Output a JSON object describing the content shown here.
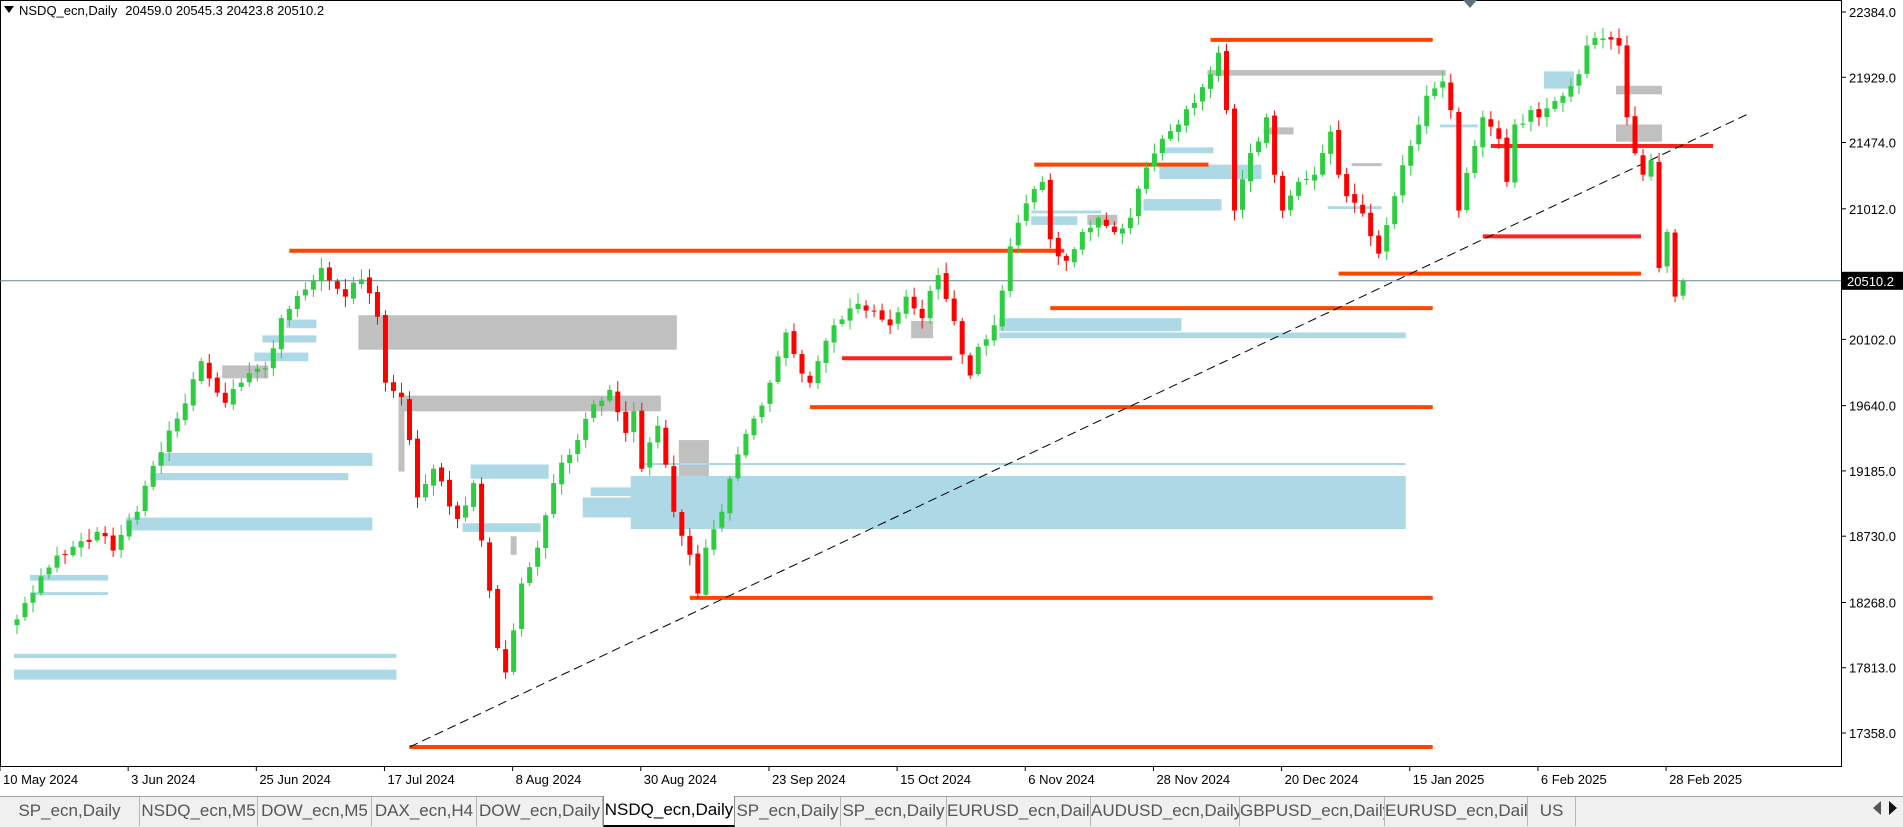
{
  "header": {
    "symbol": "NSDQ_ecn,Daily",
    "ohlc": "20459.0 20545.3 20423.8 20510.2"
  },
  "tabs": [
    {
      "label": "SP_ecn,Daily"
    },
    {
      "label": "NSDQ_ecn,M5"
    },
    {
      "label": "DOW_ecn,M5"
    },
    {
      "label": "DAX_ecn,H4"
    },
    {
      "label": "DOW_ecn,Daily"
    },
    {
      "label": "NSDQ_ecn,Daily",
      "active": true
    },
    {
      "label": "SP_ecn,Daily"
    },
    {
      "label": "SP_ecn,Daily"
    },
    {
      "label": "EURUSD_ecn,Daily"
    },
    {
      "label": "AUDUSD_ecn,Daily"
    },
    {
      "label": "GBPUSD_ecn,Daily"
    },
    {
      "label": "EURUSD_ecn,Daily"
    },
    {
      "label": "US"
    }
  ],
  "chart_data": {
    "type": "candlestick",
    "symbol": "NSDQ_ecn",
    "timeframe": "Daily",
    "current_price": 20510.2,
    "current_price_label": "20510.2",
    "y_range": [
      17150,
      22520
    ],
    "y_ticks": [
      {
        "value": 22384.0,
        "label": "22384.0"
      },
      {
        "value": 21929.0,
        "label": "21929.0"
      },
      {
        "value": 21474.0,
        "label": "21474.0"
      },
      {
        "value": 21012.0,
        "label": "21012.0"
      },
      {
        "value": 20102.0,
        "label": "20102.0"
      },
      {
        "value": 19640.0,
        "label": "19640.0"
      },
      {
        "value": 19185.0,
        "label": "19185.0"
      },
      {
        "value": 18730.0,
        "label": "18730.0"
      },
      {
        "value": 18268.0,
        "label": "18268.0"
      },
      {
        "value": 17813.0,
        "label": "17813.0"
      },
      {
        "value": 17358.0,
        "label": "17358.0"
      }
    ],
    "x_labels": [
      {
        "index": 0,
        "label": "10 May 2024"
      },
      {
        "index": 16,
        "label": "3 Jun 2024"
      },
      {
        "index": 32,
        "label": "25 Jun 2024"
      },
      {
        "index": 48,
        "label": "17 Jul 2024"
      },
      {
        "index": 64,
        "label": "8 Aug 2024"
      },
      {
        "index": 80,
        "label": "30 Aug 2024"
      },
      {
        "index": 96,
        "label": "23 Sep 2024"
      },
      {
        "index": 112,
        "label": "15 Oct 2024"
      },
      {
        "index": 128,
        "label": "6 Nov 2024"
      },
      {
        "index": 144,
        "label": "28 Nov 2024"
      },
      {
        "index": 160,
        "label": "20 Dec 2024"
      },
      {
        "index": 176,
        "label": "15 Jan 2025"
      },
      {
        "index": 192,
        "label": "6 Feb 2025"
      },
      {
        "index": 208,
        "label": "28 Feb 2025"
      }
    ],
    "num_candles": 209,
    "price_anchors": [
      [
        0,
        18150
      ],
      [
        3,
        18450
      ],
      [
        6,
        18600
      ],
      [
        10,
        18760
      ],
      [
        12,
        18630
      ],
      [
        15,
        18900
      ],
      [
        17,
        19220
      ],
      [
        20,
        19550
      ],
      [
        23,
        19950
      ],
      [
        26,
        19660
      ],
      [
        28,
        19800
      ],
      [
        31,
        19900
      ],
      [
        33,
        20250
      ],
      [
        36,
        20450
      ],
      [
        38,
        20600
      ],
      [
        41,
        20400
      ],
      [
        43,
        20520
      ],
      [
        45,
        20260
      ],
      [
        46,
        19800
      ],
      [
        48,
        19700
      ],
      [
        49,
        19400
      ],
      [
        50,
        19000
      ],
      [
        52,
        19200
      ],
      [
        55,
        18850
      ],
      [
        57,
        19100
      ],
      [
        58,
        18700
      ],
      [
        59,
        18350
      ],
      [
        60,
        17950
      ],
      [
        61,
        17780
      ],
      [
        63,
        18400
      ],
      [
        65,
        18650
      ],
      [
        67,
        19100
      ],
      [
        70,
        19400
      ],
      [
        72,
        19650
      ],
      [
        74,
        19750
      ],
      [
        76,
        19450
      ],
      [
        77,
        19600
      ],
      [
        78,
        19200
      ],
      [
        80,
        19500
      ],
      [
        82,
        18900
      ],
      [
        84,
        18600
      ],
      [
        85,
        18330
      ],
      [
        86,
        18650
      ],
      [
        88,
        18900
      ],
      [
        90,
        19300
      ],
      [
        92,
        19550
      ],
      [
        94,
        19800
      ],
      [
        96,
        20150
      ],
      [
        97,
        20000
      ],
      [
        99,
        19800
      ],
      [
        100,
        19950
      ],
      [
        102,
        20200
      ],
      [
        105,
        20350
      ],
      [
        107,
        20300
      ],
      [
        109,
        20200
      ],
      [
        111,
        20400
      ],
      [
        113,
        20250
      ],
      [
        115,
        20550
      ],
      [
        117,
        20230
      ],
      [
        119,
        19850
      ],
      [
        120,
        20050
      ],
      [
        122,
        20200
      ],
      [
        124,
        20750
      ],
      [
        126,
        21050
      ],
      [
        127,
        21150
      ],
      [
        128,
        21200
      ],
      [
        129,
        20800
      ],
      [
        131,
        20650
      ],
      [
        133,
        20850
      ],
      [
        135,
        20950
      ],
      [
        137,
        20850
      ],
      [
        139,
        20950
      ],
      [
        141,
        21300
      ],
      [
        143,
        21500
      ],
      [
        145,
        21600
      ],
      [
        147,
        21750
      ],
      [
        149,
        21950
      ],
      [
        150,
        22100
      ],
      [
        151,
        21700
      ],
      [
        152,
        21000
      ],
      [
        154,
        21400
      ],
      [
        156,
        21650
      ],
      [
        157,
        21250
      ],
      [
        158,
        21000
      ],
      [
        160,
        21200
      ],
      [
        162,
        21250
      ],
      [
        164,
        21550
      ],
      [
        165,
        21250
      ],
      [
        166,
        21100
      ],
      [
        168,
        20980
      ],
      [
        170,
        20700
      ],
      [
        172,
        21100
      ],
      [
        174,
        21450
      ],
      [
        176,
        21800
      ],
      [
        178,
        21900
      ],
      [
        179,
        21700
      ],
      [
        180,
        21000
      ],
      [
        182,
        21450
      ],
      [
        183,
        21650
      ],
      [
        185,
        21500
      ],
      [
        186,
        21200
      ],
      [
        187,
        21600
      ],
      [
        189,
        21700
      ],
      [
        190,
        21650
      ],
      [
        193,
        21800
      ],
      [
        195,
        21950
      ],
      [
        196,
        22150
      ],
      [
        198,
        22200
      ],
      [
        200,
        22150
      ],
      [
        201,
        21650
      ],
      [
        202,
        21400
      ],
      [
        203,
        21250
      ],
      [
        204,
        21350
      ],
      [
        205,
        20600
      ],
      [
        206,
        20850
      ],
      [
        207,
        20400
      ],
      [
        208,
        20510.2
      ]
    ],
    "zones_grey": [
      {
        "x0": 26,
        "x1": 31,
        "low": 19830,
        "high": 19920
      },
      {
        "x0": 43,
        "x1": 82,
        "low": 20030,
        "high": 20270
      },
      {
        "x0": 48,
        "x1": 80,
        "low": 19600,
        "high": 19710
      },
      {
        "x0": 48,
        "x1": 48,
        "low": 19180,
        "high": 19710
      },
      {
        "x0": 62,
        "x1": 62,
        "low": 18600,
        "high": 18730
      },
      {
        "x0": 83,
        "x1": 86,
        "low": 19150,
        "high": 19400
      },
      {
        "x0": 112,
        "x1": 114,
        "low": 20110,
        "high": 20230
      },
      {
        "x0": 134,
        "x1": 137,
        "low": 20900,
        "high": 20970
      },
      {
        "x0": 149,
        "x1": 178,
        "low": 21940,
        "high": 21980
      },
      {
        "x0": 156,
        "x1": 159,
        "low": 21530,
        "high": 21580
      },
      {
        "x0": 167,
        "x1": 170,
        "low": 21310,
        "high": 21330
      },
      {
        "x0": 200,
        "x1": 205,
        "low": 21810,
        "high": 21870
      },
      {
        "x0": 200,
        "x1": 205,
        "low": 21480,
        "high": 21600
      }
    ],
    "zones_blue": [
      {
        "x0": 0,
        "x1": 47,
        "low": 17730,
        "high": 17800
      },
      {
        "x0": 0,
        "x1": 47,
        "low": 17880,
        "high": 17910
      },
      {
        "x0": 2,
        "x1": 11,
        "low": 18420,
        "high": 18460
      },
      {
        "x0": 2,
        "x1": 11,
        "low": 18320,
        "high": 18340
      },
      {
        "x0": 14,
        "x1": 44,
        "low": 18770,
        "high": 18860
      },
      {
        "x0": 17,
        "x1": 41,
        "low": 19120,
        "high": 19170
      },
      {
        "x0": 18,
        "x1": 44,
        "low": 19220,
        "high": 19310
      },
      {
        "x0": 30,
        "x1": 36,
        "low": 19950,
        "high": 20010
      },
      {
        "x0": 31,
        "x1": 37,
        "low": 20080,
        "high": 20130
      },
      {
        "x0": 34,
        "x1": 37,
        "low": 20180,
        "high": 20240
      },
      {
        "x0": 56,
        "x1": 65,
        "low": 18760,
        "high": 18820
      },
      {
        "x0": 57,
        "x1": 66,
        "low": 19130,
        "high": 19230
      },
      {
        "x0": 71,
        "x1": 81,
        "low": 18860,
        "high": 19000
      },
      {
        "x0": 72,
        "x1": 81,
        "low": 19010,
        "high": 19070
      },
      {
        "x0": 127,
        "x1": 135,
        "low": 20980,
        "high": 21000
      },
      {
        "x0": 127,
        "x1": 132,
        "low": 20900,
        "high": 20960
      },
      {
        "x0": 123,
        "x1": 145,
        "low": 20160,
        "high": 20250
      },
      {
        "x0": 123,
        "x1": 173,
        "low": 20110,
        "high": 20150
      },
      {
        "x0": 141,
        "x1": 150,
        "low": 21000,
        "high": 21080
      },
      {
        "x0": 143,
        "x1": 155,
        "low": 21220,
        "high": 21320
      },
      {
        "x0": 143,
        "x1": 149,
        "low": 21400,
        "high": 21440
      },
      {
        "x0": 164,
        "x1": 170,
        "low": 21010,
        "high": 21030
      },
      {
        "x0": 178,
        "x1": 182,
        "low": 21580,
        "high": 21600
      },
      {
        "x0": 191,
        "x1": 194,
        "low": 21850,
        "high": 21970
      }
    ],
    "zones_blue_wide": [
      {
        "x0": 77,
        "x1": 173,
        "low": 18780,
        "high": 19150
      },
      {
        "x0": 78,
        "x1": 173,
        "low": 19230,
        "high": 19240
      }
    ],
    "levels": [
      {
        "x0": 34,
        "x1": 127,
        "price": 20720,
        "color": "#ff4500"
      },
      {
        "x0": 49,
        "x1": 173,
        "price": 17260,
        "color": "#ff4500"
      },
      {
        "x0": 84,
        "x1": 173,
        "price": 18300,
        "color": "#ff4500"
      },
      {
        "x0": 99,
        "x1": 173,
        "price": 19630,
        "color": "#ff4500"
      },
      {
        "x0": 127,
        "x1": 145,
        "price": 21320,
        "color": "#ff4500"
      },
      {
        "x0": 129,
        "x1": 173,
        "price": 20320,
        "color": "#ff4500"
      },
      {
        "x0": 149,
        "x1": 173,
        "price": 22190,
        "color": "#ff4500"
      },
      {
        "x0": 165,
        "x1": 199,
        "price": 20560,
        "color": "#ff4500"
      },
      {
        "x0": 103,
        "x1": 113,
        "price": 19970,
        "color": "#ff2020"
      },
      {
        "x0": 184,
        "x1": 208,
        "price": 21450,
        "color": "#ff2020"
      },
      {
        "x0": 183,
        "x1": 199,
        "price": 20820,
        "color": "#ff2020"
      }
    ],
    "trendline": {
      "x0": 49,
      "y0": 17260,
      "x1": 216,
      "y1": 21670
    },
    "price_line": 20510.2
  }
}
